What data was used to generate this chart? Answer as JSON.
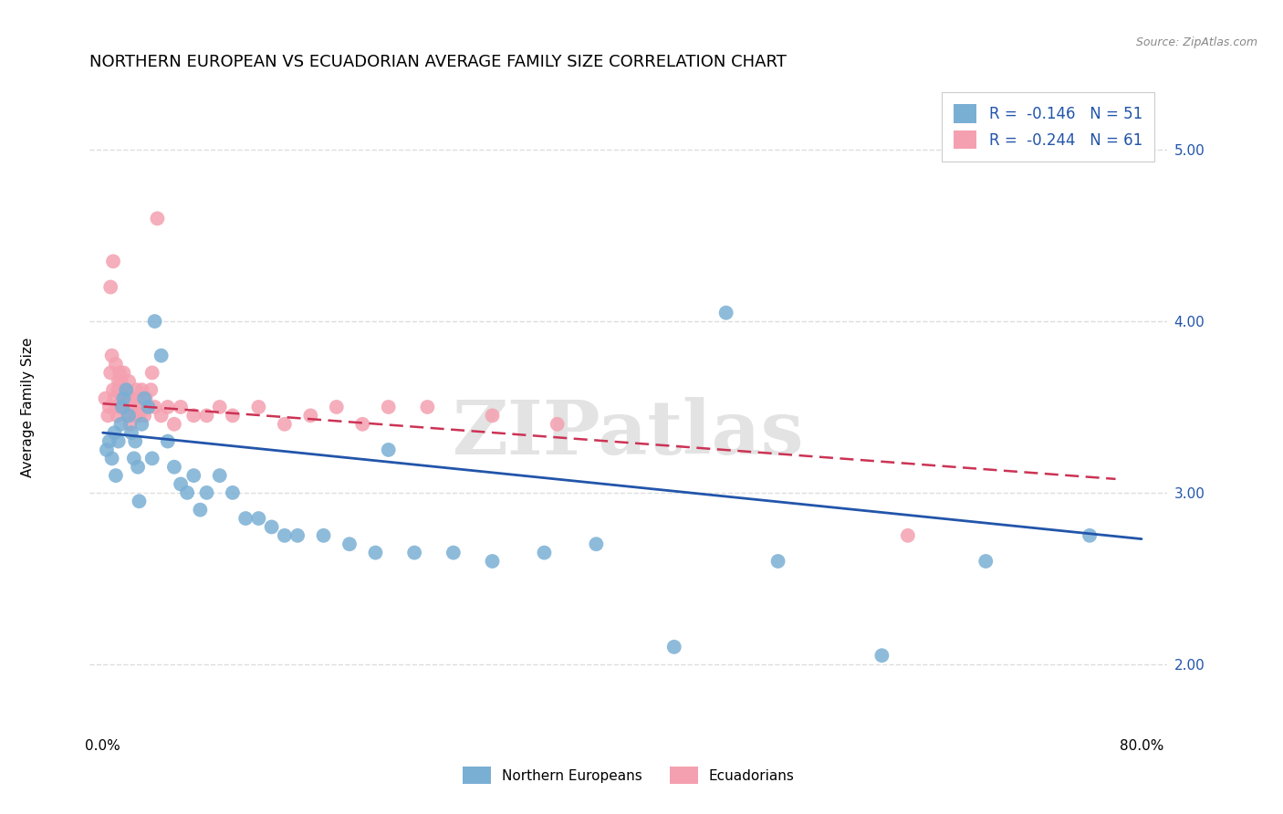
{
  "title": "NORTHERN EUROPEAN VS ECUADORIAN AVERAGE FAMILY SIZE CORRELATION CHART",
  "source": "Source: ZipAtlas.com",
  "ylabel": "Average Family Size",
  "legend_blue_label": "Northern Europeans",
  "legend_pink_label": "Ecuadorians",
  "legend_blue_R": "R =  -0.146",
  "legend_blue_N": "N = 51",
  "legend_pink_R": "R =  -0.244",
  "legend_pink_N": "N = 61",
  "blue_scatter_color": "#7AAFD4",
  "pink_scatter_color": "#F4A0B0",
  "blue_line_color": "#2255AA",
  "pink_line_color": "#CC3355",
  "watermark": "ZIPatlas",
  "blue_scatter_x": [
    0.3,
    0.5,
    0.7,
    0.9,
    1.0,
    1.2,
    1.4,
    1.5,
    1.6,
    1.8,
    2.0,
    2.2,
    2.4,
    2.5,
    2.7,
    3.0,
    3.2,
    3.5,
    4.0,
    4.5,
    5.0,
    5.5,
    6.0,
    6.5,
    7.0,
    7.5,
    8.0,
    9.0,
    10.0,
    11.0,
    12.0,
    13.0,
    14.0,
    15.0,
    17.0,
    19.0,
    21.0,
    24.0,
    27.0,
    30.0,
    34.0,
    38.0,
    44.0,
    52.0,
    60.0,
    68.0,
    76.0,
    2.8,
    3.8,
    22.0,
    48.0
  ],
  "blue_scatter_y": [
    3.25,
    3.3,
    3.2,
    3.35,
    3.1,
    3.3,
    3.4,
    3.5,
    3.55,
    3.6,
    3.45,
    3.35,
    3.2,
    3.3,
    3.15,
    3.4,
    3.55,
    3.5,
    4.0,
    3.8,
    3.3,
    3.15,
    3.05,
    3.0,
    3.1,
    2.9,
    3.0,
    3.1,
    3.0,
    2.85,
    2.85,
    2.8,
    2.75,
    2.75,
    2.75,
    2.7,
    2.65,
    2.65,
    2.65,
    2.6,
    2.65,
    2.7,
    2.1,
    2.6,
    2.05,
    2.6,
    2.75,
    2.95,
    3.2,
    3.25,
    4.05
  ],
  "pink_scatter_x": [
    0.2,
    0.4,
    0.5,
    0.6,
    0.7,
    0.8,
    0.9,
    1.0,
    1.1,
    1.2,
    1.3,
    1.4,
    1.5,
    1.6,
    1.7,
    1.8,
    1.9,
    2.0,
    2.1,
    2.2,
    2.4,
    2.6,
    2.8,
    3.0,
    3.3,
    3.5,
    3.7,
    4.0,
    4.5,
    5.0,
    5.5,
    6.0,
    7.0,
    8.0,
    9.0,
    10.0,
    12.0,
    14.0,
    16.0,
    18.0,
    20.0,
    25.0,
    30.0,
    35.0,
    1.5,
    2.5,
    3.8,
    0.6,
    0.8,
    1.0,
    1.2,
    1.4,
    1.6,
    1.8,
    2.0,
    2.2,
    2.7,
    3.2,
    4.2,
    62.0,
    22.0
  ],
  "pink_scatter_y": [
    3.55,
    3.45,
    3.5,
    3.7,
    3.8,
    3.6,
    3.55,
    3.5,
    3.45,
    3.65,
    3.7,
    3.5,
    3.55,
    3.5,
    3.6,
    3.55,
    3.45,
    3.5,
    3.4,
    3.55,
    3.5,
    3.6,
    3.45,
    3.6,
    3.55,
    3.5,
    3.6,
    3.5,
    3.45,
    3.5,
    3.4,
    3.5,
    3.45,
    3.45,
    3.5,
    3.45,
    3.5,
    3.4,
    3.45,
    3.5,
    3.4,
    3.5,
    3.45,
    3.4,
    3.55,
    3.45,
    3.7,
    4.2,
    4.35,
    3.75,
    3.6,
    3.65,
    3.7,
    3.6,
    3.65,
    3.55,
    3.5,
    3.45,
    4.6,
    2.75,
    3.5
  ],
  "xlim": [
    -1,
    82
  ],
  "ylim": [
    1.6,
    5.4
  ],
  "xticks": [
    0,
    10,
    20,
    30,
    40,
    50,
    60,
    70,
    80
  ],
  "xtick_labels": [
    "0.0%",
    "",
    "",
    "",
    "",
    "",
    "",
    "",
    "80.0%"
  ],
  "yticks": [
    2.0,
    3.0,
    4.0,
    5.0
  ],
  "ytick_labels": [
    "2.00",
    "3.00",
    "4.00",
    "5.00"
  ],
  "grid_color": "#DDDDDD",
  "title_fontsize": 13,
  "label_fontsize": 11,
  "tick_fontsize": 11,
  "blue_line_x0": 0,
  "blue_line_x1": 80,
  "blue_line_y0": 3.35,
  "blue_line_y1": 2.73,
  "pink_line_x0": 0,
  "pink_line_x1": 78,
  "pink_line_y0": 3.52,
  "pink_line_y1": 3.08
}
